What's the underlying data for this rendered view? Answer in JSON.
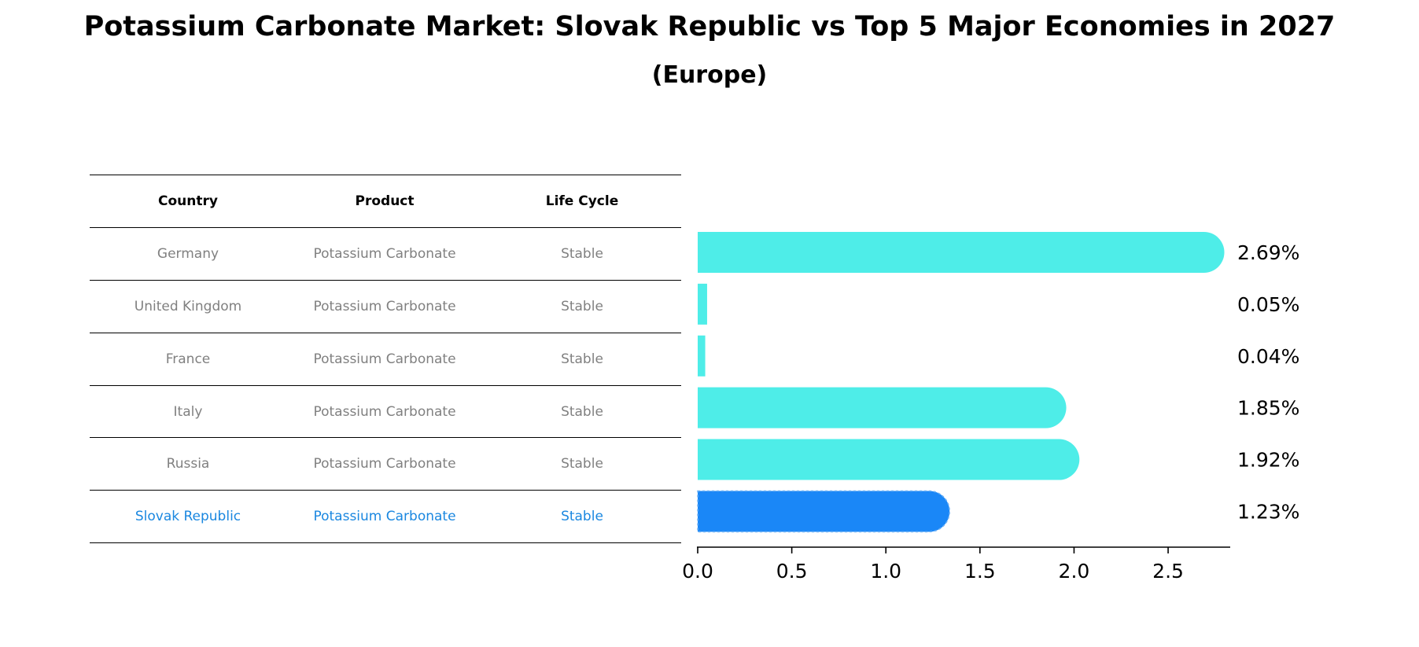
{
  "title": "Potassium Carbonate Market: Slovak Republic vs Top 5 Major Economies in 2027",
  "subtitle": "(Europe)",
  "table": {
    "headers": [
      "Country",
      "Product",
      "Life Cycle"
    ],
    "rows": [
      [
        "Germany",
        "Potassium Carbonate",
        "Stable"
      ],
      [
        "United Kingdom",
        "Potassium Carbonate",
        "Stable"
      ],
      [
        "France",
        "Potassium Carbonate",
        "Stable"
      ],
      [
        "Italy",
        "Potassium Carbonate",
        "Stable"
      ],
      [
        "Russia",
        "Potassium Carbonate",
        "Stable"
      ],
      [
        "Slovak Republic",
        "Potassium Carbonate",
        "Stable"
      ]
    ],
    "highlight_row": 5
  },
  "colors": {
    "bar": "#4eede8",
    "highlight": "#1a87f7",
    "highlight_text": "#1a87e0",
    "row_text": "#808080"
  },
  "chart_data": {
    "type": "bar",
    "orientation": "horizontal",
    "categories": [
      "Germany",
      "United Kingdom",
      "France",
      "Italy",
      "Russia",
      "Slovak Republic"
    ],
    "values": [
      2.69,
      0.05,
      0.04,
      1.85,
      1.92,
      1.23
    ],
    "value_labels": [
      "2.69%",
      "0.05%",
      "0.04%",
      "1.85%",
      "1.92%",
      "1.23%"
    ],
    "xlim": [
      0,
      2.83
    ],
    "xticks": [
      0.0,
      0.5,
      1.0,
      1.5,
      2.0,
      2.5
    ],
    "xtick_labels": [
      "0.0",
      "0.5",
      "1.0",
      "1.5",
      "2.0",
      "2.5"
    ],
    "grid": false
  }
}
